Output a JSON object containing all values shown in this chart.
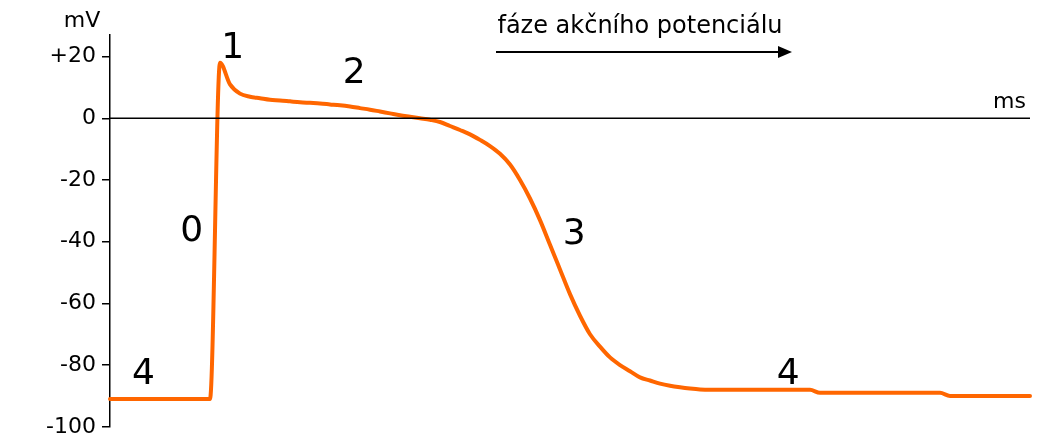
{
  "chart_data": {
    "type": "line",
    "title": "fáze akčního potenciálu",
    "xlabel": "ms",
    "ylabel": "mV",
    "categories": [
      null,
      null,
      null,
      null,
      null,
      null,
      null,
      null,
      null,
      null,
      null,
      null,
      null,
      null,
      null,
      null,
      null,
      null,
      null,
      null,
      null,
      null,
      null,
      null,
      null,
      null,
      null,
      null,
      null,
      null,
      null,
      null,
      null,
      null,
      null,
      null,
      null,
      null,
      null,
      null,
      null,
      null,
      null,
      null,
      null,
      null,
      null,
      null,
      null,
      null,
      null,
      null,
      null,
      null,
      null,
      null,
      null,
      null,
      null,
      null,
      null,
      null,
      null,
      null,
      null,
      null,
      null,
      null,
      null,
      null,
      null,
      null,
      null,
      null,
      null,
      null,
      null,
      null,
      null,
      null,
      null,
      null,
      null,
      null,
      null,
      null,
      null,
      null,
      null,
      null,
      null,
      null,
      null
    ],
    "series": [
      {
        "color": "#ff6600",
        "values": [
          -91,
          -91,
          -91,
          -91,
          -91,
          -91,
          -91,
          -91,
          -91,
          -91,
          -91,
          18,
          11,
          8,
          7,
          6.5,
          6,
          5.8,
          5.5,
          5.2,
          5,
          4.8,
          4.5,
          4.2,
          3.8,
          3.3,
          2.8,
          2.2,
          1.6,
          1,
          0.5,
          0,
          -0.5,
          -1.2,
          -2.5,
          -3.8,
          -5.2,
          -7,
          -9,
          -11.5,
          -15,
          -20,
          -26,
          -33,
          -41,
          -49,
          -57,
          -64,
          -70,
          -74,
          -77.5,
          -80,
          -82,
          -84,
          -85,
          -86,
          -86.7,
          -87.2,
          -87.6,
          -87.9,
          -88,
          -88,
          -88,
          -88,
          -88,
          -88,
          -88,
          -88,
          -88,
          -88,
          -88,
          -89,
          -89,
          -89,
          -89,
          -89,
          -89,
          -89,
          -89,
          -89,
          -89,
          -89,
          -89,
          -89,
          -90,
          -90,
          -90,
          -90,
          -90,
          -90,
          -90,
          -90,
          -90
        ]
      }
    ],
    "ylim": [
      -100,
      27
    ],
    "yticks": [
      {
        "value": 20,
        "label": "+20"
      },
      0,
      -20,
      -40,
      -60,
      -80,
      -100
    ],
    "tick_labels": "y",
    "grid": false,
    "legend": false,
    "marker": "none",
    "line_style": "solid",
    "ref_lines": [
      {
        "axis": "y",
        "value": 0,
        "color": "#000000"
      }
    ],
    "annotations": [
      "1",
      "2",
      "0",
      "3",
      "4",
      "4"
    ]
  }
}
